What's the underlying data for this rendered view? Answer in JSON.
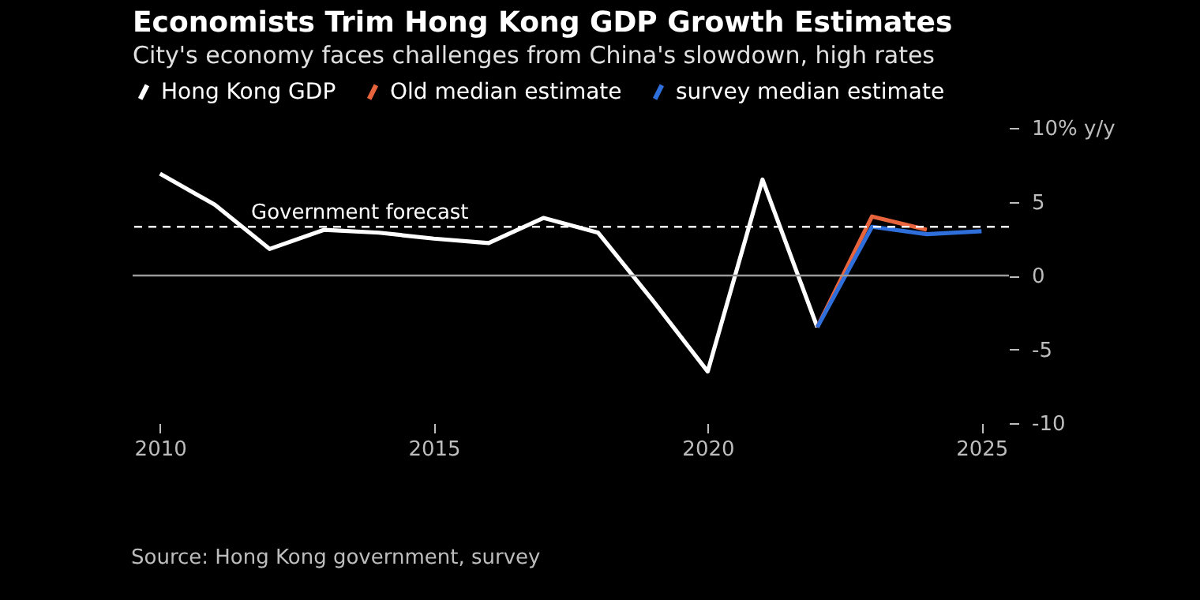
{
  "chart_data": {
    "type": "line",
    "title": "Economists Trim Hong Kong GDP Growth Estimates",
    "subtitle": "City's economy faces challenges from China's slowdown, high rates",
    "x": [
      2010,
      2011,
      2012,
      2013,
      2014,
      2015,
      2016,
      2017,
      2018,
      2019,
      2020,
      2021,
      2022
    ],
    "series": [
      {
        "name": "Hong Kong GDP",
        "color": "#ffffff",
        "values": [
          6.9,
          4.8,
          1.8,
          3.1,
          2.9,
          2.5,
          2.2,
          3.9,
          2.9,
          -1.7,
          -6.5,
          6.5,
          -3.5
        ]
      },
      {
        "name": "Old median estimate",
        "color": "#e8643c",
        "x": [
          2022,
          2023,
          2024
        ],
        "values": [
          -3.5,
          4.0,
          3.1
        ]
      },
      {
        "name": "survey median estimate",
        "color": "#2f6fdc",
        "x": [
          2022,
          2023,
          2024,
          2025
        ],
        "values": [
          -3.5,
          3.3,
          2.8,
          3.0
        ]
      }
    ],
    "xlim": [
      2009.5,
      2025.5
    ],
    "xticks": [
      2010,
      2015,
      2020,
      2025
    ],
    "ylim": [
      -10,
      10
    ],
    "yticks": [
      -10,
      -5,
      0,
      5,
      {
        "value": 10,
        "label": "10% y/y"
      }
    ],
    "ref_lines": [
      {
        "axis": "y",
        "value": 0,
        "color": "#9a9a9a",
        "line_style": "solid"
      },
      {
        "axis": "y",
        "value": 3.3,
        "label": "Government forecast",
        "color": "#ffffff",
        "line_style": "dashed"
      }
    ],
    "legend": "top left",
    "grid": false,
    "annotations": [
      "Source: Hong Kong government, survey"
    ]
  }
}
